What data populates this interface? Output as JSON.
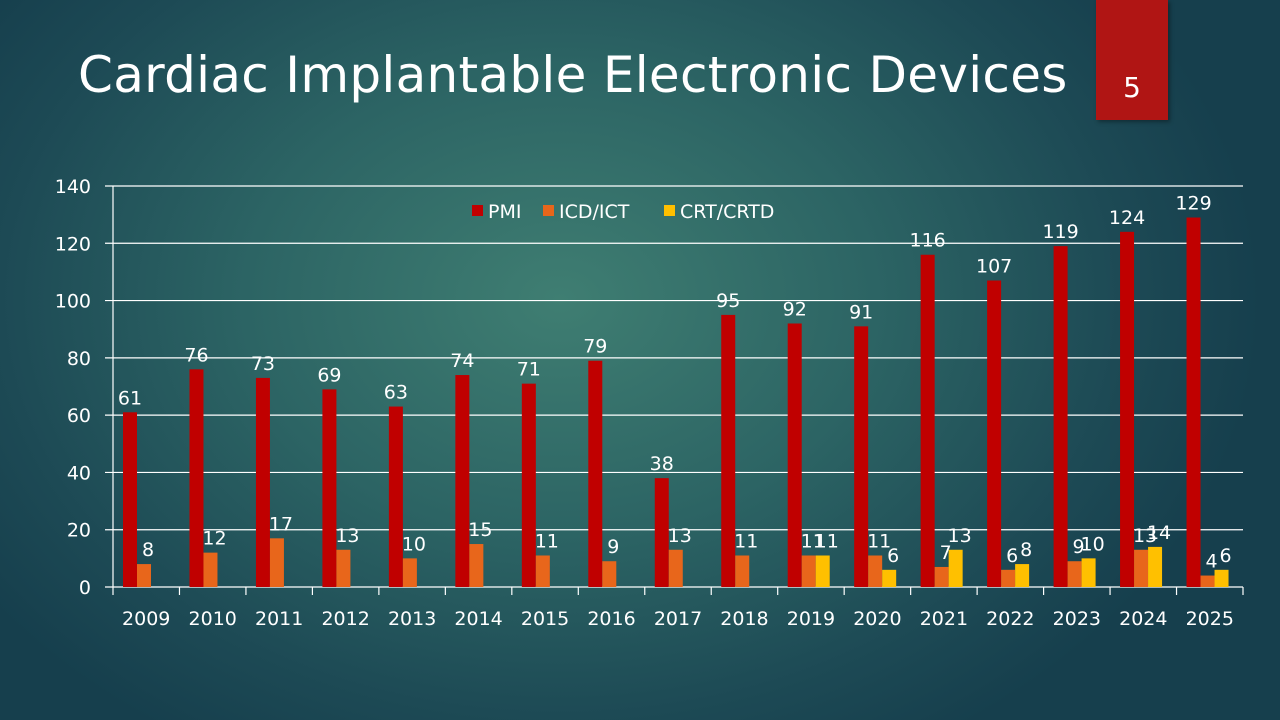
{
  "slide": {
    "title": "Cardiac Implantable Electronic Devices",
    "page_number": "5"
  },
  "colors": {
    "PMI": "#c00000",
    "ICD/ICT": "#e8661b",
    "CRT/CRTD": "#ffc000",
    "badge": "#b01514"
  },
  "chart_data": {
    "type": "bar",
    "title": "",
    "xlabel": "",
    "ylabel": "",
    "ylim": [
      0,
      140
    ],
    "yticks": [
      0,
      20,
      40,
      60,
      80,
      100,
      120,
      140
    ],
    "grid": true,
    "legend_position": "top-center",
    "categories": [
      "2009",
      "2010",
      "2011",
      "2012",
      "2013",
      "2014",
      "2015",
      "2016",
      "2017",
      "2018",
      "2019",
      "2020",
      "2021",
      "2022",
      "2023",
      "2024",
      "2025"
    ],
    "series": [
      {
        "name": "PMI",
        "values": [
          61,
          76,
          73,
          69,
          63,
          74,
          71,
          79,
          38,
          95,
          92,
          91,
          116,
          107,
          119,
          124,
          129
        ]
      },
      {
        "name": "ICD/ICT",
        "values": [
          8,
          12,
          17,
          13,
          10,
          15,
          11,
          9,
          13,
          11,
          11,
          11,
          7,
          6,
          9,
          13,
          4
        ]
      },
      {
        "name": "CRT/CRTD",
        "values": [
          null,
          null,
          null,
          null,
          null,
          null,
          null,
          null,
          null,
          null,
          11,
          6,
          13,
          8,
          10,
          14,
          6
        ]
      }
    ]
  }
}
